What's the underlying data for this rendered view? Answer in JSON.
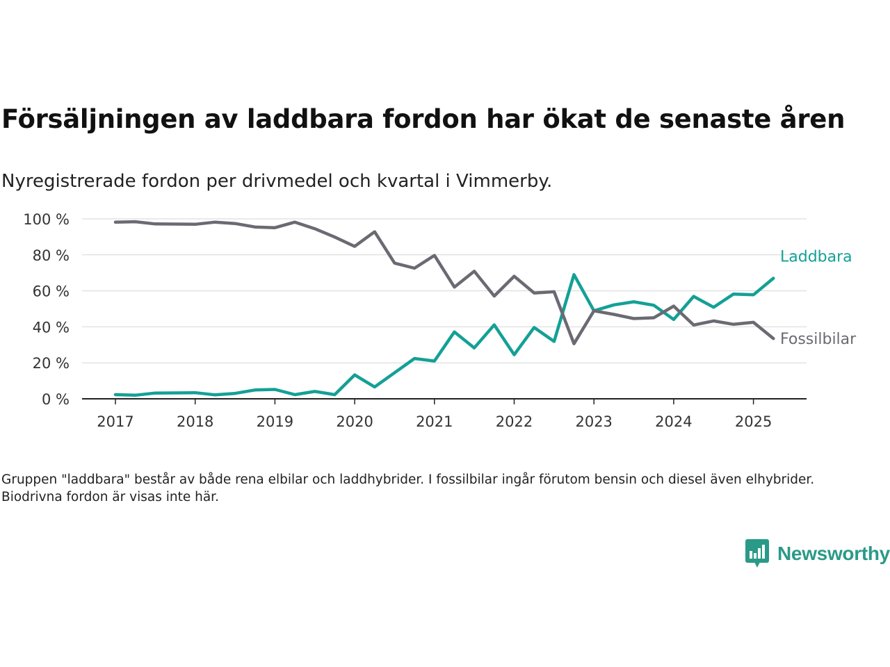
{
  "title": "Försäljningen av laddbara fordon har ökat de senaste åren",
  "subtitle": "Nyregistrerade fordon per drivmedel och kvartal i Vimmerby.",
  "note": "Gruppen \"laddbara\" består av både rena elbilar och laddhybrider. I fossilbilar ingår förutom bensin och diesel även elhybrider. Biodrivna fordon är visas inte här.",
  "brand": {
    "name": "Newsworthy",
    "color": "#2a9a88",
    "icon": "bar-chart-speech-bubble-icon"
  },
  "chart_data": {
    "type": "line",
    "x_ticks": [
      "2017",
      "2018",
      "2019",
      "2020",
      "2021",
      "2022",
      "2023",
      "2024",
      "2025"
    ],
    "y_ticks": [
      "0 %",
      "20 %",
      "40 %",
      "60 %",
      "80 %",
      "100 %"
    ],
    "ylim": [
      0,
      100
    ],
    "grid": true,
    "x": [
      "2017-Q1",
      "2017-Q2",
      "2017-Q3",
      "2017-Q4",
      "2018-Q1",
      "2018-Q2",
      "2018-Q3",
      "2018-Q4",
      "2019-Q1",
      "2019-Q2",
      "2019-Q3",
      "2019-Q4",
      "2020-Q1",
      "2020-Q2",
      "2020-Q3",
      "2020-Q4",
      "2021-Q1",
      "2021-Q2",
      "2021-Q3",
      "2021-Q4",
      "2022-Q1",
      "2022-Q2",
      "2022-Q3",
      "2022-Q4",
      "2023-Q1",
      "2023-Q2",
      "2023-Q3",
      "2023-Q4",
      "2024-Q1",
      "2024-Q2",
      "2024-Q3",
      "2024-Q4",
      "2025-Q1",
      "2025-Q2"
    ],
    "series": [
      {
        "name": "Laddbara",
        "color": "#14a096",
        "values": [
          2.3,
          2.0,
          3.2,
          3.3,
          3.4,
          2.2,
          3.0,
          4.9,
          5.2,
          2.3,
          4.1,
          2.3,
          13.3,
          6.6,
          14.5,
          22.4,
          21.0,
          37.2,
          28.3,
          41.1,
          24.5,
          39.6,
          31.9,
          69.0,
          48.9,
          52.2,
          53.9,
          52.0,
          44.1,
          56.9,
          50.9,
          58.2,
          57.8,
          67.0
        ]
      },
      {
        "name": "Fossilbilar",
        "color": "#6b6a73",
        "values": [
          98.2,
          98.4,
          97.2,
          97.1,
          97.0,
          98.2,
          97.4,
          95.5,
          95.1,
          98.2,
          94.5,
          89.9,
          84.7,
          92.8,
          75.4,
          72.6,
          79.7,
          62.1,
          70.9,
          57.1,
          68.1,
          58.8,
          59.5,
          30.6,
          48.9,
          46.9,
          44.6,
          45.0,
          51.5,
          41.0,
          43.3,
          41.4,
          42.5,
          33.5
        ]
      }
    ]
  }
}
